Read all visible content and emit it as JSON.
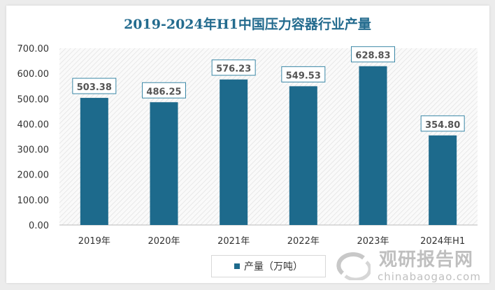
{
  "chart_data": {
    "type": "bar",
    "title": "2019-2024年H1中国压力容器行业产量",
    "categories": [
      "2019年",
      "2020年",
      "2021年",
      "2022年",
      "2023年",
      "2024年H1"
    ],
    "series": [
      {
        "name": "产量（万吨）",
        "values": [
          503.38,
          486.25,
          576.23,
          549.53,
          628.83,
          354.8
        ],
        "color": "#1d6a8c"
      }
    ],
    "data_labels": [
      "503.38",
      "486.25",
      "576.23",
      "549.53",
      "628.83",
      "354.80"
    ],
    "yticks": [
      "0.00",
      "100.00",
      "200.00",
      "300.00",
      "400.00",
      "500.00",
      "600.00",
      "700.00"
    ],
    "ylim": [
      0,
      700
    ],
    "grid": false,
    "legend": "bottom",
    "xlabel": "",
    "ylabel": ""
  },
  "watermark": {
    "cn": "观研报告网",
    "en": "chinabaogao.com"
  }
}
